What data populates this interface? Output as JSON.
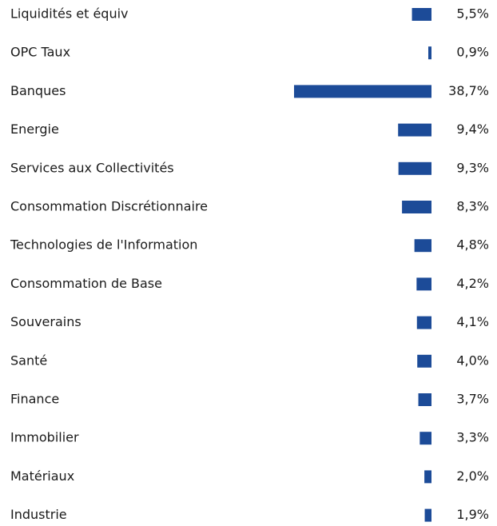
{
  "chart_data": {
    "type": "bar",
    "orientation": "horizontal",
    "color": "#1c4b98",
    "categories": [
      "Liquidités et équiv",
      "OPC Taux",
      "Banques",
      "Energie",
      "Services aux Collectivités",
      "Consommation Discrétionnaire",
      "Technologies de l'Information",
      "Consommation de Base",
      "Souverains",
      "Santé",
      "Finance",
      "Immobilier",
      "Matériaux",
      "Industrie"
    ],
    "values": [
      5.5,
      0.9,
      38.7,
      9.4,
      9.3,
      8.3,
      4.8,
      4.2,
      4.1,
      4.0,
      3.7,
      3.3,
      2.0,
      1.9
    ],
    "value_labels": [
      "5,5%",
      "0,9%",
      "38,7%",
      "9,4%",
      "9,3%",
      "8,3%",
      "4,8%",
      "4,2%",
      "4,1%",
      "4,0%",
      "3,7%",
      "3,3%",
      "2,0%",
      "1,9%"
    ]
  }
}
